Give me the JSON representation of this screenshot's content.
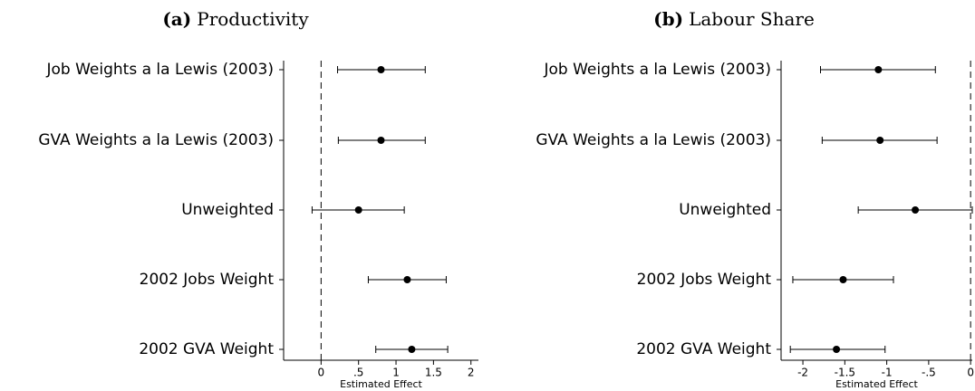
{
  "chart_data": [
    {
      "type": "dot-whisker",
      "panel": "(a)",
      "title": "Productivity",
      "x_label": "Estimated Effect",
      "categories": [
        "Job Weights a la Lewis (2003)",
        "GVA Weights a la Lewis (2003)",
        "Unweighted",
        "2002 Jobs Weight",
        "2002 GVA Weight"
      ],
      "values": [
        0.8,
        0.8,
        0.5,
        1.15,
        1.21
      ],
      "lower": [
        0.22,
        0.23,
        -0.12,
        0.63,
        0.73
      ],
      "upper": [
        1.39,
        1.39,
        1.11,
        1.67,
        1.69
      ],
      "xlim": [
        -0.5,
        2.1
      ],
      "xticks": [
        0,
        {
          "value": 0.5,
          "label": ".5"
        },
        1,
        1.5,
        2
      ],
      "reference_line": 0,
      "color": "#000000"
    },
    {
      "type": "dot-whisker",
      "panel": "(b)",
      "title": "Labour Share",
      "x_label": "Estimated Effect",
      "categories": [
        "Job Weights a la Lewis (2003)",
        "GVA Weights a la Lewis (2003)",
        "Unweighted",
        "2002 Jobs Weight",
        "2002 GVA Weight"
      ],
      "values": [
        -1.1,
        -1.08,
        -0.66,
        -1.52,
        -1.6
      ],
      "lower": [
        -1.79,
        -1.77,
        -1.34,
        -2.12,
        -2.15
      ],
      "upper": [
        -0.42,
        -0.4,
        0.02,
        -0.92,
        -1.02
      ],
      "xlim": [
        -2.26,
        0.02
      ],
      "xticks": [
        -2,
        -1.5,
        -1,
        {
          "value": -0.5,
          "label": "-.5"
        },
        0
      ],
      "reference_line": 0,
      "color": "#000000"
    }
  ]
}
